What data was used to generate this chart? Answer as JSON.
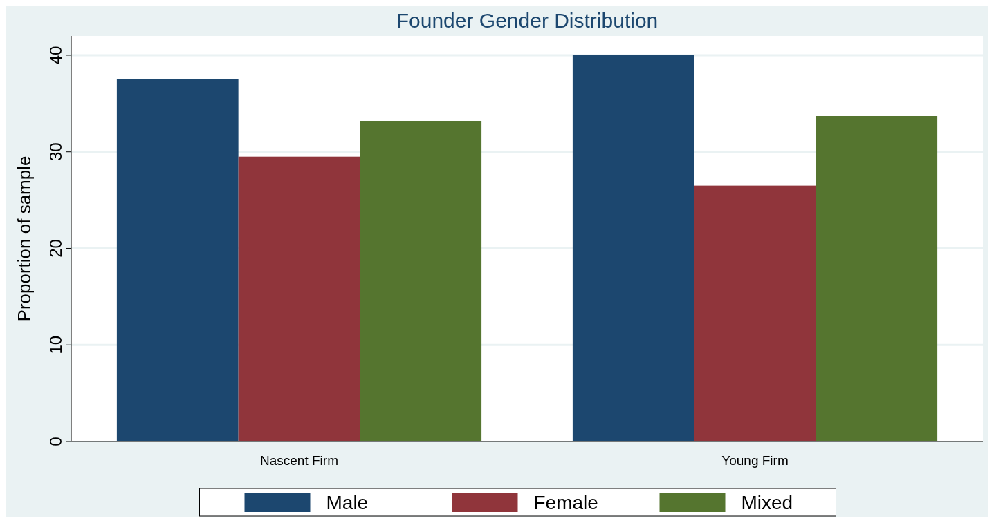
{
  "chart_data": {
    "type": "bar",
    "title": "Founder Gender Distribution",
    "ylabel": "Proportion of sample",
    "categories": [
      "Nascent Firm",
      "Young Firm"
    ],
    "series": [
      {
        "name": "Male",
        "color": "#1c476f",
        "values": [
          37.5,
          40
        ]
      },
      {
        "name": "Female",
        "color": "#90353b",
        "values": [
          29.5,
          26.5
        ]
      },
      {
        "name": "Mixed",
        "color": "#55752f",
        "values": [
          33.2,
          33.7
        ]
      }
    ],
    "ylim": [
      0,
      42
    ],
    "yticks": [
      0,
      10,
      20,
      30,
      40
    ],
    "grid": "y",
    "legend": "bottom"
  }
}
